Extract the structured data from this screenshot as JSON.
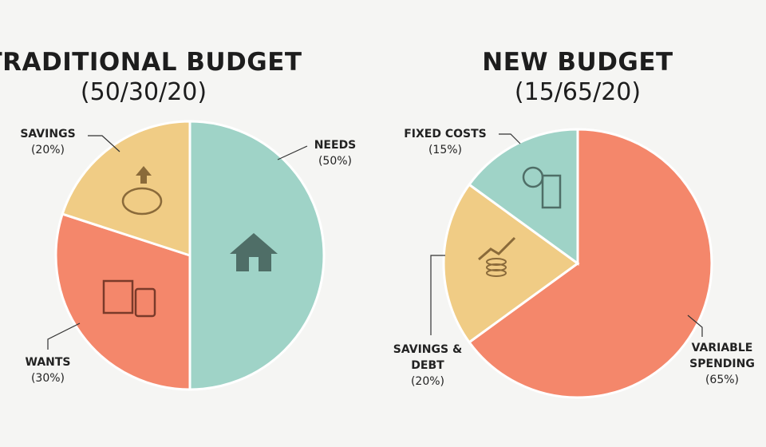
{
  "chart_data": [
    {
      "type": "pie",
      "title": "TRADITIONAL BUDGET",
      "subtitle": "(50/30/20)",
      "categories": [
        "NEEDS",
        "WANTS",
        "SAVINGS"
      ],
      "values": [
        50,
        30,
        20
      ],
      "value_labels": [
        "(50%)",
        "(30%)",
        "(20%)"
      ],
      "colors": [
        "#9fd3c7",
        "#f4876b",
        "#f0cc85"
      ]
    },
    {
      "type": "pie",
      "title": "NEW BUDGET",
      "subtitle": "(15/65/20)",
      "categories": [
        "VARIABLE SPENDING",
        "SAVINGS & DEBT",
        "FIXED COSTS"
      ],
      "values": [
        65,
        20,
        15
      ],
      "value_labels": [
        "(65%)",
        "(20%)",
        "(15%)"
      ],
      "colors": [
        "#f4876b",
        "#f0cc85",
        "#9fd3c7"
      ]
    }
  ]
}
